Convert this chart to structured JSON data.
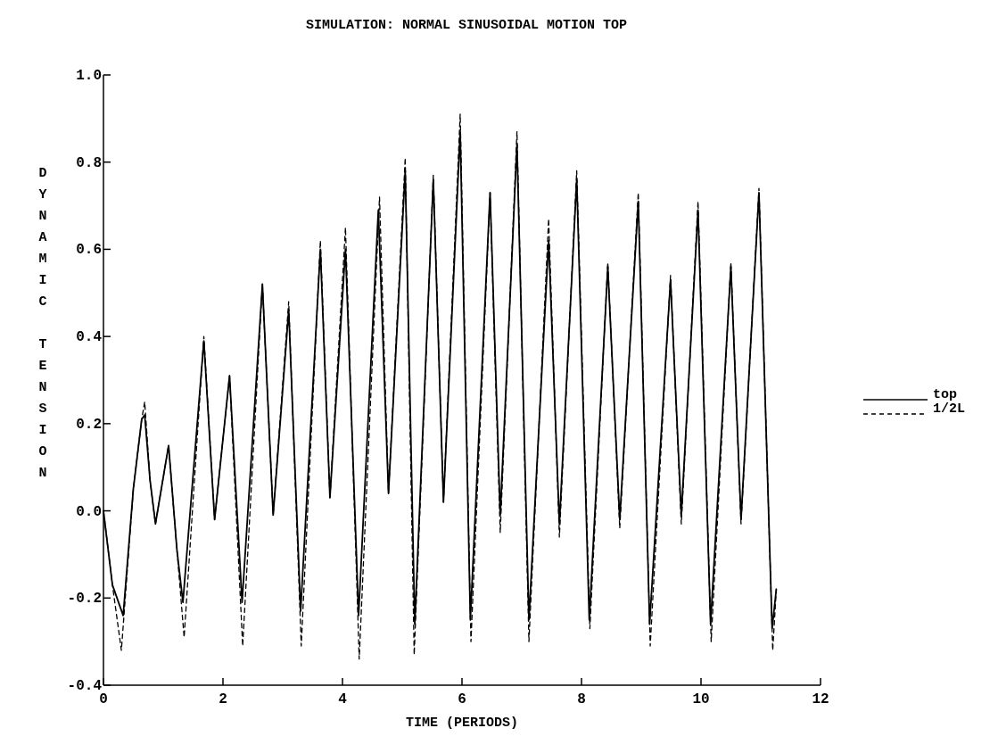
{
  "chart_data": {
    "type": "line",
    "title": "SIMULATION: NORMAL SINUSOIDAL MOTION TOP",
    "xlabel": "TIME (PERIODS)",
    "ylabel": "DYNAMIC TENSION",
    "x": [
      0,
      0.15,
      0.33,
      0.5,
      0.64,
      0.69,
      0.78,
      0.87,
      1.09,
      1.23,
      1.33,
      1.68,
      1.86,
      2.11,
      2.32,
      2.66,
      2.84,
      3.1,
      3.3,
      3.63,
      3.79,
      4.05,
      4.27,
      4.6,
      4.77,
      5.05,
      5.21,
      5.52,
      5.69,
      5.97,
      6.14,
      6.47,
      6.64,
      6.92,
      7.12,
      7.45,
      7.63,
      7.92,
      8.13,
      8.44,
      8.64,
      8.95,
      9.14,
      9.49,
      9.67,
      9.95,
      10.16,
      10.5,
      10.67,
      10.97,
      11.19,
      11.26
    ],
    "series": [
      {
        "name": "top",
        "color": "#000000",
        "line_style": "solid",
        "values": [
          0,
          -0.17,
          -0.24,
          0.05,
          0.21,
          0.22,
          0.07,
          -0.03,
          0.15,
          -0.09,
          -0.21,
          0.39,
          -0.02,
          0.31,
          -0.21,
          0.52,
          -0.01,
          0.46,
          -0.23,
          0.6,
          0.03,
          0.6,
          -0.24,
          0.69,
          0.04,
          0.78,
          -0.26,
          0.76,
          0.02,
          0.87,
          -0.25,
          0.73,
          -0.01,
          0.84,
          -0.25,
          0.62,
          -0.03,
          0.76,
          -0.25,
          0.56,
          -0.02,
          0.71,
          -0.26,
          0.53,
          -0.01,
          0.69,
          -0.26,
          0.56,
          -0.02,
          0.73,
          -0.27,
          -0.18
        ]
      },
      {
        "name": "1/2L",
        "color": "#000000",
        "line_style": "dashed",
        "x": [
          0,
          0.15,
          0.3,
          0.5,
          0.64,
          0.69,
          0.78,
          0.87,
          1.09,
          1.23,
          1.35,
          1.68,
          1.86,
          2.11,
          2.33,
          2.66,
          2.84,
          3.1,
          3.31,
          3.63,
          3.79,
          4.05,
          4.28,
          4.62,
          4.77,
          5.05,
          5.2,
          5.52,
          5.69,
          5.97,
          6.15,
          6.47,
          6.64,
          6.92,
          7.12,
          7.45,
          7.63,
          7.92,
          8.14,
          8.44,
          8.64,
          8.95,
          9.15,
          9.49,
          9.67,
          9.95,
          10.17,
          10.5,
          10.67,
          10.97,
          11.2,
          11.26
        ],
        "values": [
          0,
          -0.17,
          -0.32,
          0.05,
          0.21,
          0.25,
          0.07,
          -0.03,
          0.15,
          -0.09,
          -0.29,
          0.4,
          -0.02,
          0.31,
          -0.31,
          0.52,
          -0.01,
          0.48,
          -0.31,
          0.62,
          0.03,
          0.65,
          -0.34,
          0.72,
          0.04,
          0.81,
          -0.33,
          0.77,
          0.02,
          0.91,
          -0.3,
          0.73,
          -0.05,
          0.87,
          -0.3,
          0.67,
          -0.06,
          0.78,
          -0.27,
          0.57,
          -0.04,
          0.73,
          -0.31,
          0.54,
          -0.03,
          0.71,
          -0.3,
          0.57,
          -0.03,
          0.74,
          -0.32,
          -0.18
        ]
      }
    ],
    "xlim": [
      0,
      12
    ],
    "xticks": [
      0,
      2,
      4,
      6,
      8,
      10,
      12
    ],
    "ylim": [
      -0.4,
      1.0
    ],
    "yticks": [
      -0.4,
      -0.2,
      {
        "value": 0,
        "label": "0.0"
      },
      0.2,
      0.4,
      0.6,
      0.8,
      {
        "value": 1,
        "label": "1.0"
      }
    ],
    "grid": false,
    "legend": "right",
    "marker": "none"
  }
}
